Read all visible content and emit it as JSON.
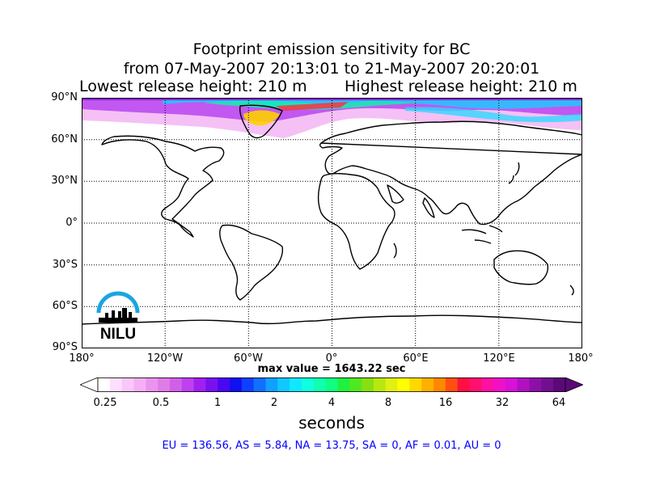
{
  "title": {
    "line1": "Footprint emission sensitivity for BC",
    "line2": "from 07-May-2007 20:13:01 to 21-May-2007 20:20:01",
    "lowest": "Lowest release height: 210 m",
    "highest": "Highest release height: 210 m"
  },
  "map": {
    "lat_labels": [
      "90°N",
      "60°N",
      "30°N",
      "0°",
      "30°S",
      "60°S",
      "90°S"
    ],
    "lon_labels": [
      "180°",
      "120°W",
      "60°W",
      "0°",
      "60°E",
      "120°E",
      "180°"
    ],
    "grid": "dotted every 30° lat / 60° lon",
    "logo_text": "NILU"
  },
  "max_value": "max value = 1643.22 sec",
  "colorbar": {
    "ticks": [
      "0.25",
      "0.5",
      "1",
      "2",
      "4",
      "8",
      "16",
      "32",
      "64"
    ],
    "units": "seconds",
    "colors": [
      "#ffffff",
      "#fde0fd",
      "#fac7fa",
      "#f5b0f5",
      "#eb94ef",
      "#e07ce8",
      "#d060e8",
      "#be40f0",
      "#a020f0",
      "#7a10f0",
      "#4a08f0",
      "#1010f0",
      "#1040ff",
      "#1070ff",
      "#10a0ff",
      "#10c8ff",
      "#10e8ff",
      "#10ffe0",
      "#10ffb0",
      "#10ff80",
      "#20f040",
      "#50e820",
      "#88e010",
      "#b8e810",
      "#e0f010",
      "#ffff00",
      "#ffd800",
      "#ffb000",
      "#ff8800",
      "#ff5010",
      "#ff1040",
      "#ff1070",
      "#ff10a0",
      "#f010c8",
      "#d810d8",
      "#b010c0",
      "#8c10a8",
      "#701090",
      "#5c0878"
    ]
  },
  "totals": "EU = 136.56,  AS = 5.84,  NA = 13.75,  SA = 0,  AF = 0.01,  AU = 0"
}
